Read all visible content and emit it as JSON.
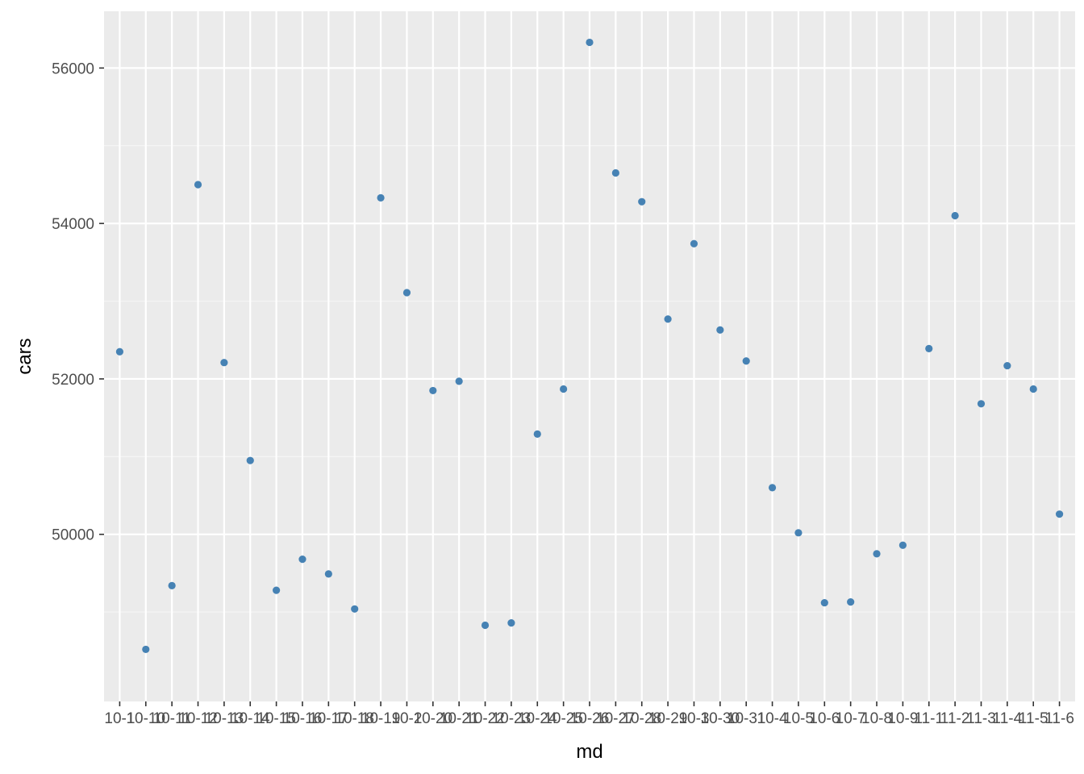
{
  "colors": {
    "panel_background": "#EBEBEB",
    "grid_major": "#FFFFFF",
    "grid_minor": "#F5F5F5",
    "point": "#4682B4",
    "tick_label": "#4D4D4D",
    "tick_mark": "#333333",
    "axis_title": "#000000"
  },
  "chart_data": {
    "type": "scatter",
    "xlabel": "md",
    "ylabel": "cars",
    "ylim": [
      47850,
      56730
    ],
    "y_breaks": [
      50000,
      52000,
      54000,
      56000
    ],
    "y_tick_labels": [
      "50000",
      "52000",
      "54000",
      "56000"
    ],
    "grid": true,
    "legend": "none",
    "categories": [
      "10-1",
      "10-10",
      "10-11",
      "10-12",
      "10-13",
      "10-14",
      "10-15",
      "10-16",
      "10-17",
      "10-18",
      "10-19",
      "10-2",
      "10-20",
      "10-21",
      "10-22",
      "10-23",
      "10-24",
      "10-25",
      "10-26",
      "10-27",
      "10-28",
      "10-29",
      "10-3",
      "10-30",
      "10-31",
      "10-4",
      "10-5",
      "10-6",
      "10-7",
      "10-8",
      "10-9",
      "11-1",
      "11-2",
      "11-3",
      "11-4",
      "11-5",
      "11-6"
    ],
    "values": [
      52350,
      48520,
      49340,
      54500,
      52210,
      50950,
      49280,
      49680,
      49490,
      49040,
      54330,
      53110,
      51850,
      51970,
      48830,
      48860,
      51290,
      51870,
      56330,
      54650,
      54280,
      52770,
      53740,
      52630,
      52230,
      50600,
      50020,
      49120,
      49130,
      49750,
      49860,
      52390,
      54100,
      51680,
      52170,
      51870,
      50260
    ]
  }
}
